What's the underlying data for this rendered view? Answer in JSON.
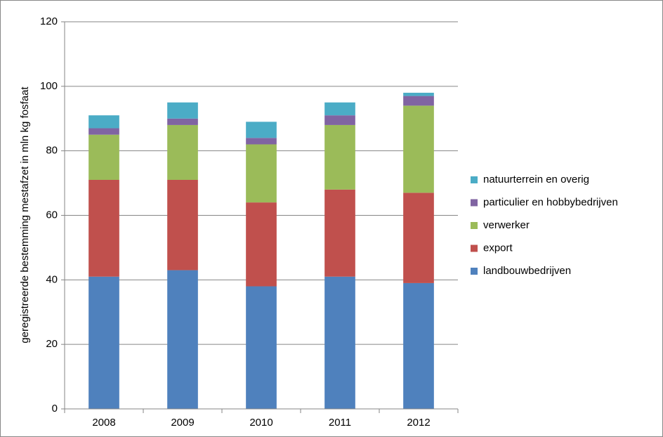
{
  "chart_data": {
    "type": "stacked_bar",
    "y_label": "geregistreerde bestemming mestafzet in mln kg fosfaat",
    "categories": [
      "2008",
      "2009",
      "2010",
      "2011",
      "2012"
    ],
    "series": [
      {
        "name": "landbouwbedrijven",
        "color": "#4f81bd",
        "values": [
          41,
          43,
          38,
          41,
          39
        ]
      },
      {
        "name": "export",
        "color": "#c0504d",
        "values": [
          30,
          28,
          26,
          27,
          28
        ]
      },
      {
        "name": "verwerker",
        "color": "#9bbb59",
        "values": [
          14,
          17,
          18,
          20,
          27
        ]
      },
      {
        "name": "particulier en hobbybedrijven",
        "color": "#8064a2",
        "values": [
          2,
          2,
          2,
          3,
          3
        ]
      },
      {
        "name": "natuurterrein en overig",
        "color": "#4bacc6",
        "values": [
          4,
          5,
          5,
          4,
          1
        ]
      }
    ],
    "ylim": [
      0,
      120
    ],
    "yticks": [
      0,
      20,
      40,
      60,
      80,
      100,
      120
    ],
    "grid": true,
    "legend": "right"
  }
}
